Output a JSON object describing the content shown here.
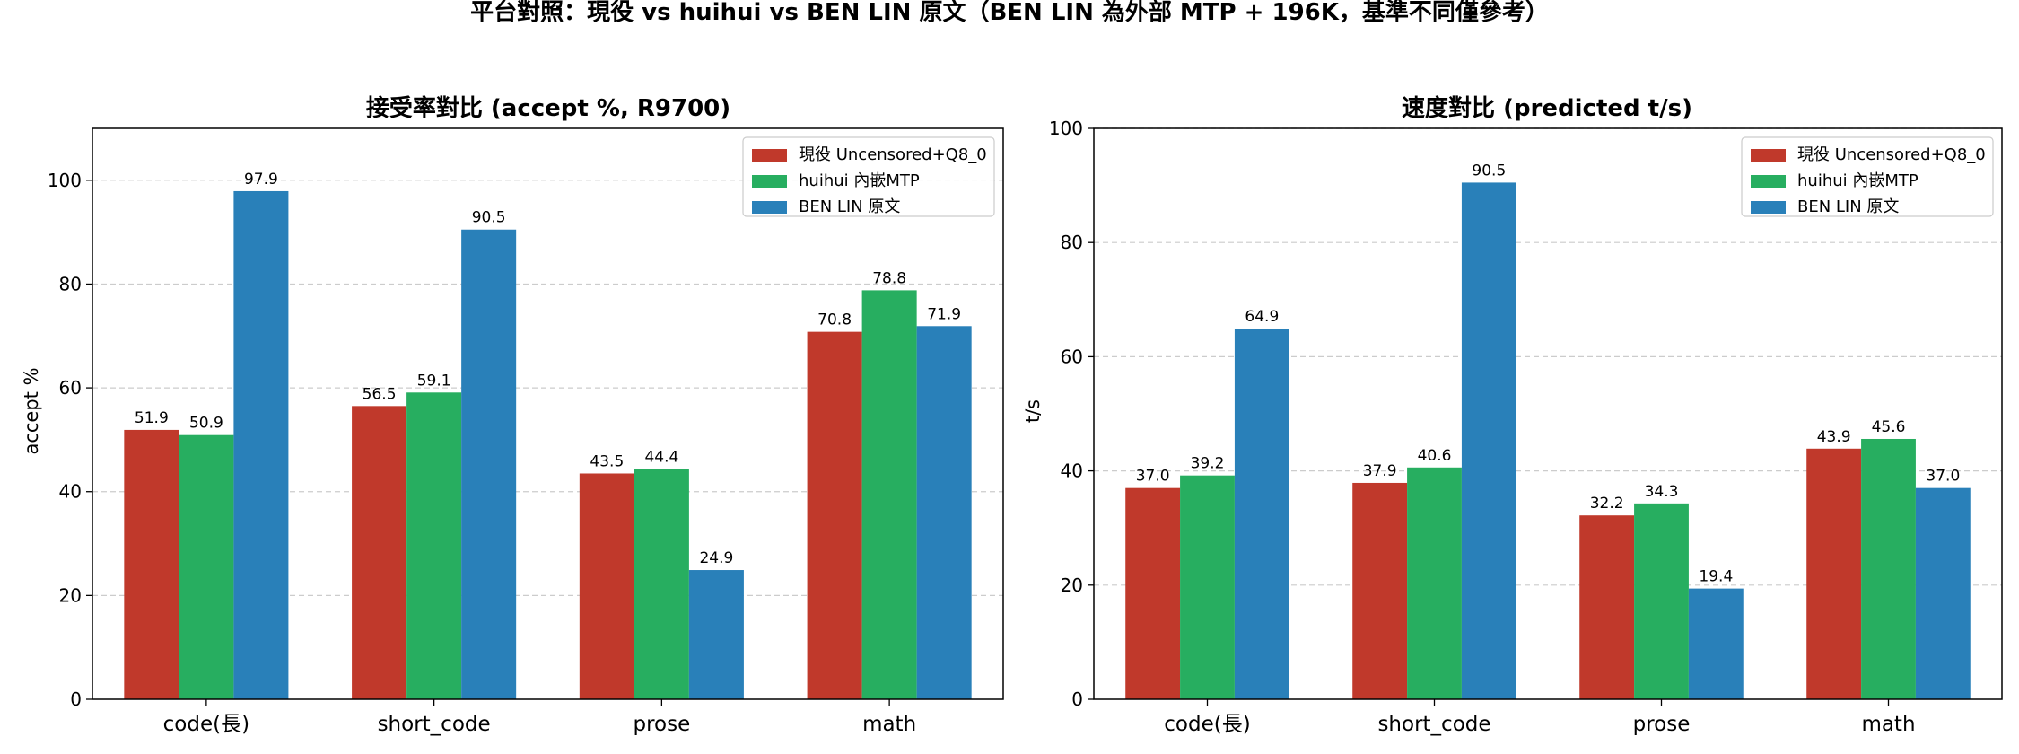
{
  "figure": {
    "suptitle": "平台對照：現役 vs huihui vs BEN LIN 原文（BEN LIN 為外部 MTP + 196K，基準不同僅參考）"
  },
  "colors": {
    "series": [
      "#c0392b",
      "#27ae60",
      "#2980b9"
    ],
    "grid": "#cccccc",
    "axis": "#000000"
  },
  "chart_data": [
    {
      "type": "bar",
      "title": "接受率對比 (accept %, R9700)",
      "xlabel": "",
      "ylabel": "accept %",
      "categories": [
        "code(長)",
        "short_code",
        "prose",
        "math"
      ],
      "ylim": [
        0,
        110
      ],
      "yticks": [
        0,
        20,
        40,
        60,
        80,
        100
      ],
      "grid": "y-dashed",
      "legend_position": "top-right",
      "series": [
        {
          "name": "現役 Uncensored+Q8_0",
          "values": [
            51.9,
            56.5,
            43.5,
            70.8
          ]
        },
        {
          "name": "huihui 內嵌MTP",
          "values": [
            50.9,
            59.1,
            44.4,
            78.8
          ]
        },
        {
          "name": "BEN LIN 原文",
          "values": [
            97.9,
            90.5,
            24.9,
            71.9
          ]
        }
      ]
    },
    {
      "type": "bar",
      "title": "速度對比 (predicted t/s)",
      "xlabel": "",
      "ylabel": "t/s",
      "categories": [
        "code(長)",
        "short_code",
        "prose",
        "math"
      ],
      "ylim": [
        0,
        100
      ],
      "yticks": [
        0,
        20,
        40,
        60,
        80,
        100
      ],
      "grid": "y-dashed",
      "legend_position": "top-right",
      "series": [
        {
          "name": "現役 Uncensored+Q8_0",
          "values": [
            37.0,
            37.9,
            32.2,
            43.9
          ]
        },
        {
          "name": "huihui 內嵌MTP",
          "values": [
            39.2,
            40.6,
            34.3,
            45.6
          ]
        },
        {
          "name": "BEN LIN 原文",
          "values": [
            64.9,
            90.5,
            19.4,
            37.0
          ]
        }
      ]
    }
  ]
}
